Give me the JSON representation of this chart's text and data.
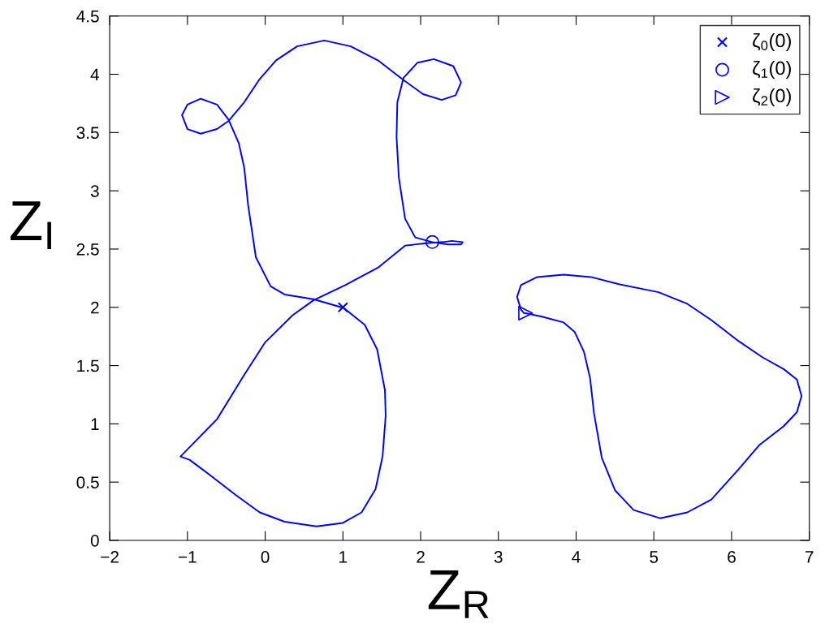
{
  "chart_data": {
    "type": "line",
    "xlabel": "Z$_{R}$",
    "ylabel": "Z$_{I}$",
    "xlim": [
      -2,
      7
    ],
    "ylim": [
      0,
      4.5
    ],
    "xticks": [
      -2,
      -1,
      0,
      1,
      2,
      3,
      4,
      5,
      6,
      7
    ],
    "yticks": [
      0,
      0.5,
      1,
      1.5,
      2,
      2.5,
      3,
      3.5,
      4,
      4.5
    ],
    "grid": false,
    "legend": "top right",
    "series": [
      {
        "color": "#0000ff",
        "marker": "none",
        "line_style": "solid",
        "x": [
          1.0,
          1.28,
          1.44,
          1.54,
          1.55,
          1.51,
          1.42,
          1.24,
          1.0,
          0.66,
          0.25,
          -0.07,
          -0.38,
          -0.69,
          -0.97,
          -1.09,
          -0.62,
          -0.27,
          0.0,
          0.35,
          0.62,
          1.03,
          1.45,
          1.8,
          2.07,
          2.29,
          2.4,
          2.54,
          2.52,
          2.35,
          2.15,
          1.93,
          1.8,
          1.72,
          1.69,
          1.7,
          1.78,
          1.96,
          2.17,
          2.42,
          2.52,
          2.45,
          2.27,
          2.03,
          1.76,
          1.45,
          1.1,
          0.76,
          0.41,
          0.14,
          -0.07,
          -0.27,
          -0.47,
          -0.62,
          -0.83,
          -1.0,
          -1.07,
          -1.0,
          -0.83,
          -0.62,
          -0.47,
          -0.34,
          -0.27,
          -0.22,
          -0.12,
          0.07,
          0.25,
          0.62,
          0.98
        ],
        "values": [
          2.0,
          1.85,
          1.64,
          1.29,
          1.07,
          0.72,
          0.44,
          0.24,
          0.15,
          0.12,
          0.16,
          0.24,
          0.39,
          0.55,
          0.69,
          0.72,
          1.04,
          1.42,
          1.7,
          1.93,
          2.06,
          2.19,
          2.34,
          2.53,
          2.55,
          2.56,
          2.57,
          2.56,
          2.54,
          2.54,
          2.56,
          2.6,
          2.76,
          3.11,
          3.46,
          3.76,
          3.97,
          4.1,
          4.13,
          4.07,
          3.93,
          3.82,
          3.78,
          3.83,
          3.96,
          4.12,
          4.24,
          4.29,
          4.24,
          4.12,
          3.96,
          3.76,
          3.6,
          3.53,
          3.49,
          3.53,
          3.65,
          3.74,
          3.79,
          3.74,
          3.61,
          3.41,
          3.2,
          2.88,
          2.43,
          2.18,
          2.11,
          2.07,
          2.0
        ]
      },
      {
        "color": "#0000ff",
        "marker": "none",
        "line_style": "solid",
        "x": [
          3.35,
          3.56,
          3.84,
          3.98,
          4.1,
          4.18,
          4.23,
          4.33,
          4.5,
          4.74,
          5.08,
          5.43,
          5.74,
          6.09,
          6.36,
          6.67,
          6.84,
          6.9,
          6.84,
          6.67,
          6.4,
          6.09,
          5.74,
          5.43,
          5.06,
          4.54,
          4.19,
          3.84,
          3.5,
          3.29,
          3.24,
          3.29,
          3.33
        ],
        "values": [
          1.95,
          1.92,
          1.87,
          1.79,
          1.62,
          1.39,
          1.09,
          0.71,
          0.43,
          0.26,
          0.19,
          0.24,
          0.35,
          0.61,
          0.82,
          0.98,
          1.1,
          1.24,
          1.38,
          1.47,
          1.57,
          1.71,
          1.89,
          2.03,
          2.13,
          2.2,
          2.26,
          2.28,
          2.26,
          2.19,
          2.09,
          1.98,
          1.95
        ]
      },
      {
        "type": "scatter",
        "name": "ζ$_{0}$(0)",
        "color": "#0000ff",
        "marker": "cross",
        "x": [
          1.0
        ],
        "values": [
          2.0
        ]
      },
      {
        "type": "scatter",
        "name": "ζ$_{1}$(0)",
        "color": "#0000ff",
        "marker": "circle",
        "x": [
          2.15
        ],
        "values": [
          2.56
        ]
      },
      {
        "type": "scatter",
        "name": "ζ$_{2}$(0)",
        "color": "#0000ff",
        "marker": "triangle",
        "x": [
          3.35
        ],
        "values": [
          1.95
        ]
      }
    ]
  }
}
